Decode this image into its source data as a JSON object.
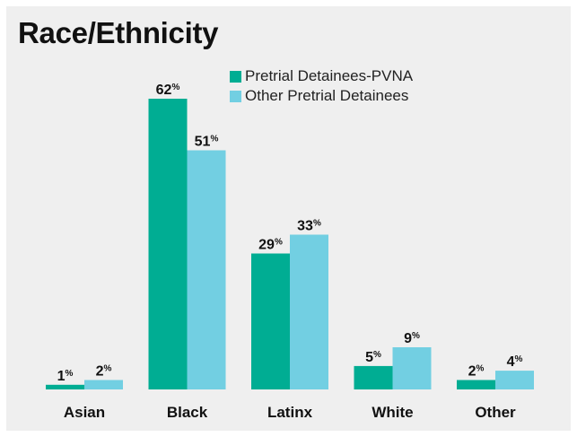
{
  "chart_data": {
    "type": "bar",
    "title": "Race/Ethnicity",
    "categories": [
      "Asian",
      "Black",
      "Latinx",
      "White",
      "Other"
    ],
    "series": [
      {
        "name": "Pretrial Detainees-PVNA",
        "color": "#00ad93",
        "values": [
          1,
          62,
          29,
          5,
          2
        ]
      },
      {
        "name": "Other Pretrial Detainees",
        "color": "#72cfe2",
        "values": [
          2,
          51,
          33,
          9,
          4
        ]
      }
    ],
    "value_suffix": "%",
    "xlabel": "",
    "ylabel": "",
    "ylim": [
      0,
      62
    ],
    "grid": false,
    "legend_position": "top-center"
  }
}
